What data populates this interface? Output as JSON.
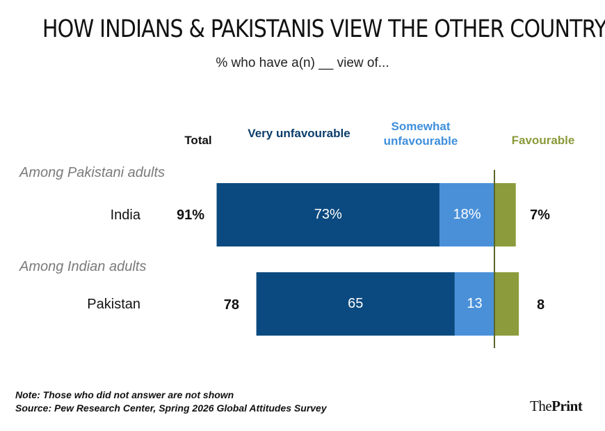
{
  "title": "HOW INDIANS & PAKISTANIS VIEW THE OTHER COUNTRY",
  "subtitle": "% who have a(n) __ view of...",
  "headers": {
    "total": "Total",
    "very": "Very unfavourable",
    "somewhat": "Somewhat unfavourable",
    "favourable": "Favourable"
  },
  "colors": {
    "very": "#0b4a80",
    "somewhat": "#4a90d9",
    "favourable": "#8c9c3c",
    "divider": "#5a6428"
  },
  "chart_data": {
    "type": "bar",
    "orientation": "horizontal-diverging",
    "groups": [
      "Among Pakistani adults",
      "Among Indian adults"
    ],
    "categories": [
      "India",
      "Pakistan"
    ],
    "series": [
      {
        "name": "Very unfavourable",
        "values": [
          73,
          65
        ]
      },
      {
        "name": "Somewhat unfavourable",
        "values": [
          18,
          13
        ]
      },
      {
        "name": "Favourable",
        "values": [
          7,
          8
        ]
      }
    ],
    "totals": [
      91,
      78
    ],
    "labels": {
      "very": [
        "73%",
        "65"
      ],
      "somewhat": [
        "18%",
        "13"
      ],
      "favourable": [
        "7%",
        "8"
      ],
      "totals": [
        "91%",
        "78"
      ]
    }
  },
  "footer": {
    "note": "Note: Those who did not answer are not shown",
    "source": "Source: Pew Research Center, Spring 2026 Global Attitudes Survey"
  },
  "logo": {
    "prefix": "The",
    "name": "Print"
  }
}
